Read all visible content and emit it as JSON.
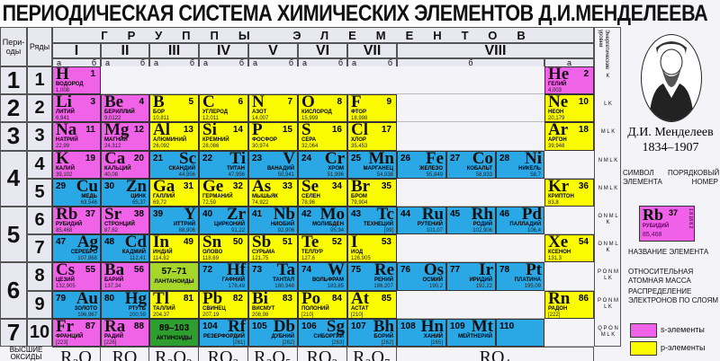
{
  "title": "ПЕРИОДИЧЕСКАЯ СИСТЕМА ХИМИЧЕСКИХ ЭЛЕМЕНТОВ Д.И.МЕНДЕЛЕЕВА",
  "header": {
    "periods_label": "Пери-оды",
    "rows_label": "Ряды",
    "groups_title": "ГРУППЫ ЭЛЕМЕНТОВ",
    "groups": [
      "I",
      "II",
      "III",
      "IV",
      "V",
      "VI",
      "VII",
      "VIII"
    ],
    "sub_a": "а",
    "sub_b": "б",
    "energy_levels": "Энергетические уровни"
  },
  "colors": {
    "s": "#f062e8",
    "p": "#fbfb00",
    "d": "#2aa8e6",
    "lan": "#a6d62a",
    "act": "#2e9e2e"
  },
  "periods": [
    {
      "label": "1",
      "rows": 1
    },
    {
      "label": "2",
      "rows": 1
    },
    {
      "label": "3",
      "rows": 1
    },
    {
      "label": "4",
      "rows": 2
    },
    {
      "label": "5",
      "rows": 2
    },
    {
      "label": "6",
      "rows": 2
    },
    {
      "label": "7",
      "rows": 1
    }
  ],
  "rows": [
    {
      "label": "1",
      "energy": "K",
      "cells": [
        {
          "s": "H",
          "n": "1",
          "nm": "ВОДОРОД",
          "m": "1,008",
          "t": "s"
        },
        null,
        null,
        null,
        null,
        null,
        null,
        null,
        null,
        null,
        {
          "s": "He",
          "n": "2",
          "nm": "ГЕЛИЙ",
          "m": "4,003",
          "t": "s"
        }
      ]
    },
    {
      "label": "2",
      "energy": "L K",
      "cells": [
        {
          "s": "Li",
          "n": "3",
          "nm": "ЛИТИЙ",
          "m": "6,941",
          "t": "s"
        },
        {
          "s": "Be",
          "n": "4",
          "nm": "БЕРИЛЛИЙ",
          "m": "9,0122",
          "t": "s"
        },
        {
          "s": "B",
          "n": "5",
          "nm": "БОР",
          "m": "10,811",
          "t": "p"
        },
        {
          "s": "C",
          "n": "6",
          "nm": "УГЛЕРОД",
          "m": "12,011",
          "t": "p"
        },
        {
          "s": "N",
          "n": "7",
          "nm": "АЗОТ",
          "m": "14,007",
          "t": "p"
        },
        {
          "s": "O",
          "n": "8",
          "nm": "КИСЛОРОД",
          "m": "15,999",
          "t": "p"
        },
        {
          "s": "F",
          "n": "9",
          "nm": "ФТОР",
          "m": "18,998",
          "t": "p"
        },
        null,
        null,
        null,
        {
          "s": "Ne",
          "n": "10",
          "nm": "НЕОН",
          "m": "20,179",
          "t": "p"
        }
      ]
    },
    {
      "label": "3",
      "energy": "M L K",
      "cells": [
        {
          "s": "Na",
          "n": "11",
          "nm": "НАТРИЙ",
          "m": "22,99",
          "t": "s"
        },
        {
          "s": "Mg",
          "n": "12",
          "nm": "МАГНИЙ",
          "m": "24,312",
          "t": "s"
        },
        {
          "s": "Al",
          "n": "13",
          "nm": "АЛЮМИНИЙ",
          "m": "26,092",
          "t": "p"
        },
        {
          "s": "Si",
          "n": "14",
          "nm": "КРЕМНИЙ",
          "m": "28,086",
          "t": "p"
        },
        {
          "s": "P",
          "n": "15",
          "nm": "ФОСФОР",
          "m": "30,974",
          "t": "p"
        },
        {
          "s": "S",
          "n": "16",
          "nm": "СЕРА",
          "m": "32,064",
          "t": "p"
        },
        {
          "s": "Cl",
          "n": "17",
          "nm": "ХЛОР",
          "m": "35,453",
          "t": "p"
        },
        null,
        null,
        null,
        {
          "s": "Ar",
          "n": "18",
          "nm": "АРГОН",
          "m": "39,948",
          "t": "p"
        }
      ]
    },
    {
      "label": "4",
      "energy": "N M L K",
      "cells": [
        {
          "s": "K",
          "n": "19",
          "nm": "КАЛИЙ",
          "m": "39,102",
          "t": "s"
        },
        {
          "s": "Ca",
          "n": "20",
          "nm": "КАЛЬЦИЙ",
          "m": "40,08",
          "t": "s"
        },
        {
          "s": "Sc",
          "n": "21",
          "nm": "СКАНДИЙ",
          "m": "44,956",
          "t": "d"
        },
        {
          "s": "Ti",
          "n": "22",
          "nm": "ТИТАН",
          "m": "47,956",
          "t": "d"
        },
        {
          "s": "V",
          "n": "23",
          "nm": "ВАНАДИЙ",
          "m": "50,941",
          "t": "d"
        },
        {
          "s": "Cr",
          "n": "24",
          "nm": "ХРОМ",
          "m": "51,996",
          "t": "d"
        },
        {
          "s": "Mn",
          "n": "25",
          "nm": "МАРГАНЕЦ",
          "m": "54,938",
          "t": "d"
        },
        {
          "s": "Fe",
          "n": "26",
          "nm": "ЖЕЛЕЗО",
          "m": "55,849",
          "t": "d"
        },
        {
          "s": "Co",
          "n": "27",
          "nm": "КОБАЛЬТ",
          "m": "58,933",
          "t": "d"
        },
        {
          "s": "Ni",
          "n": "28",
          "nm": "НИКЕЛЬ",
          "m": "58,7",
          "t": "d"
        },
        null
      ]
    },
    {
      "label": "5",
      "energy": "N M L K",
      "cells": [
        {
          "s": "Cu",
          "n": "29",
          "nm": "МЕДЬ",
          "m": "63,546",
          "t": "d"
        },
        {
          "s": "Zn",
          "n": "30",
          "nm": "ЦИНК",
          "m": "65,37",
          "t": "d"
        },
        {
          "s": "Ga",
          "n": "31",
          "nm": "ГАЛЛИЙ",
          "m": "69,72",
          "t": "p"
        },
        {
          "s": "Ge",
          "n": "32",
          "nm": "ГЕРМАНИЙ",
          "m": "72,59",
          "t": "p"
        },
        {
          "s": "As",
          "n": "33",
          "nm": "МЫШЬЯК",
          "m": "74,922",
          "t": "p"
        },
        {
          "s": "Se",
          "n": "34",
          "nm": "СЕЛЕН",
          "m": "78,96",
          "t": "p"
        },
        {
          "s": "Br",
          "n": "35",
          "nm": "БРОМ",
          "m": "79,904",
          "t": "p"
        },
        null,
        null,
        null,
        {
          "s": "Kr",
          "n": "36",
          "nm": "КРИПТОН",
          "m": "83,8",
          "t": "p"
        }
      ]
    },
    {
      "label": "6",
      "energy": "O N M L K",
      "cells": [
        {
          "s": "Rb",
          "n": "37",
          "nm": "РУБИДИЙ",
          "m": "85,468",
          "t": "s"
        },
        {
          "s": "Sr",
          "n": "38",
          "nm": "СТРОНЦИЙ",
          "m": "87,62",
          "t": "s"
        },
        {
          "s": "Y",
          "n": "39",
          "nm": "ИТТРИЙ",
          "m": "88,906",
          "t": "d"
        },
        {
          "s": "Zr",
          "n": "40",
          "nm": "ЦИРКОНИЙ",
          "m": "91,22",
          "t": "d"
        },
        {
          "s": "Nb",
          "n": "41",
          "nm": "НИОБИЙ",
          "m": "92,906",
          "t": "d"
        },
        {
          "s": "Mo",
          "n": "42",
          "nm": "МОЛИБДЕН",
          "m": "95,94",
          "t": "d"
        },
        {
          "s": "Tc",
          "n": "43",
          "nm": "ТЕХНЕЦИЙ",
          "m": "[99]",
          "t": "d"
        },
        {
          "s": "Ru",
          "n": "44",
          "nm": "РУТЕНИЙ",
          "m": "101,07",
          "t": "d"
        },
        {
          "s": "Rh",
          "n": "45",
          "nm": "РОДИЙ",
          "m": "102,906",
          "t": "d"
        },
        {
          "s": "Pd",
          "n": "46",
          "nm": "ПАЛЛАДИЙ",
          "m": "106,4",
          "t": "d"
        },
        null
      ]
    },
    {
      "label": "7",
      "energy": "O N M L K",
      "cells": [
        {
          "s": "Ag",
          "n": "47",
          "nm": "СЕРЕБРО",
          "m": "107,868",
          "t": "d"
        },
        {
          "s": "Cd",
          "n": "48",
          "nm": "КАДМИЙ",
          "m": "112,41",
          "t": "d"
        },
        {
          "s": "In",
          "n": "49",
          "nm": "ИНДИЙ",
          "m": "114,82",
          "t": "p"
        },
        {
          "s": "Sn",
          "n": "50",
          "nm": "ОЛОВО",
          "m": "118,69",
          "t": "p"
        },
        {
          "s": "Sb",
          "n": "51",
          "nm": "СУРЬМА",
          "m": "121,75",
          "t": "p"
        },
        {
          "s": "Te",
          "n": "52",
          "nm": "ТЕЛЛУР",
          "m": "127,6",
          "t": "p"
        },
        {
          "s": "I",
          "n": "53",
          "nm": "ИОД",
          "m": "126,905",
          "t": "p"
        },
        null,
        null,
        null,
        {
          "s": "Xe",
          "n": "54",
          "nm": "КСЕНОН",
          "m": "131,3",
          "t": "p"
        }
      ]
    },
    {
      "label": "8",
      "energy": "P O N M L K",
      "cells": [
        {
          "s": "Cs",
          "n": "55",
          "nm": "ЦЕЗИЙ",
          "m": "132,905",
          "t": "s"
        },
        {
          "s": "Ba",
          "n": "56",
          "nm": "БАРИЙ",
          "m": "137,34",
          "t": "s"
        },
        {
          "series": "57–71",
          "nm": "ЛАНТАНОИДЫ",
          "t": "lan"
        },
        {
          "s": "Hf",
          "n": "72",
          "nm": "ГАФНИЙ",
          "m": "178,49",
          "t": "d"
        },
        {
          "s": "Ta",
          "n": "73",
          "nm": "ТАНТАЛ",
          "m": "180,948",
          "t": "d"
        },
        {
          "s": "W",
          "n": "74",
          "nm": "ВОЛЬФРАМ",
          "m": "183,85",
          "t": "d"
        },
        {
          "s": "Re",
          "n": "75",
          "nm": "РЕНИЙ",
          "m": "186,207",
          "t": "d"
        },
        {
          "s": "Os",
          "n": "76",
          "nm": "ОСМИЙ",
          "m": "190,2",
          "t": "d"
        },
        {
          "s": "Ir",
          "n": "77",
          "nm": "ИРИДИЙ",
          "m": "192,22",
          "t": "d"
        },
        {
          "s": "Pt",
          "n": "78",
          "nm": "ПЛАТИНА",
          "m": "195,09",
          "t": "d"
        },
        null
      ]
    },
    {
      "label": "9",
      "energy": "P O N M L K",
      "cells": [
        {
          "s": "Au",
          "n": "79",
          "nm": "ЗОЛОТО",
          "m": "196,967",
          "t": "d"
        },
        {
          "s": "Hg",
          "n": "80",
          "nm": "РТУТЬ",
          "m": "200,59",
          "t": "d"
        },
        {
          "s": "Tl",
          "n": "81",
          "nm": "ТАЛЛИЙ",
          "m": "204,37",
          "t": "p"
        },
        {
          "s": "Pb",
          "n": "82",
          "nm": "СВИНЕЦ",
          "m": "207,19",
          "t": "p"
        },
        {
          "s": "Bi",
          "n": "83",
          "nm": "ВИСМУТ",
          "m": "208,98",
          "t": "p"
        },
        {
          "s": "Po",
          "n": "84",
          "nm": "ПОЛОНИЙ",
          "m": "[210]",
          "t": "p"
        },
        {
          "s": "At",
          "n": "85",
          "nm": "АСТАТ",
          "m": "[210]",
          "t": "p"
        },
        null,
        null,
        null,
        {
          "s": "Rn",
          "n": "86",
          "nm": "РАДОН",
          "m": "[222]",
          "t": "p"
        }
      ]
    },
    {
      "label": "10",
      "energy": "Q P O N M L K",
      "cells": [
        {
          "s": "Fr",
          "n": "87",
          "nm": "ФРАНЦИЙ",
          "m": "[223]",
          "t": "s"
        },
        {
          "s": "Ra",
          "n": "88",
          "nm": "РАДИЙ",
          "m": "[226]",
          "t": "s"
        },
        {
          "series": "89–103",
          "nm": "АКТИНОИДЫ",
          "t": "act"
        },
        {
          "s": "Rf",
          "n": "104",
          "nm": "РЕЗЕРФОРДИЙ",
          "m": "[261]",
          "t": "d"
        },
        {
          "s": "Db",
          "n": "105",
          "nm": "ДУБНИЙ",
          "m": "[262]",
          "t": "d"
        },
        {
          "s": "Sg",
          "n": "106",
          "nm": "СИБОРГИЙ",
          "m": "[263]",
          "t": "d"
        },
        {
          "s": "Bh",
          "n": "107",
          "nm": "БОРИЙ",
          "m": "[262]",
          "t": "d"
        },
        {
          "s": "Hn",
          "n": "108",
          "nm": "ХАНИЙ",
          "m": "[265]",
          "t": "d"
        },
        {
          "s": "Mt",
          "n": "109",
          "nm": "МЕЙТНЕРИЙ",
          "m": "",
          "t": "d"
        },
        {
          "s": "",
          "n": "110",
          "nm": "",
          "m": "",
          "t": "d"
        },
        null
      ]
    }
  ],
  "oxides": {
    "label": "ВЫСШИЕ ОКСИДЫ",
    "values": [
      "R₂O",
      "RO",
      "R₂O₃",
      "RO₂",
      "R₂O₅",
      "RO₃",
      "R₂O₇",
      "RO₄"
    ]
  },
  "panel": {
    "name": "Д.И. Менделеев",
    "years": "1834–1907",
    "key_symbol": "Rb",
    "key_number": "37",
    "key_name": "РУБИДИЙ",
    "key_mass": "85,468",
    "key_shells": "1 8 18 8 2",
    "symbol_label": "СИМВОЛ ЭЛЕМЕНТА",
    "number_label": "ПОРЯДКОВЫЙ НОМЕР",
    "name_label": "НАЗВАНИЕ ЭЛЕМЕНТА",
    "mass_label": "ОТНОСИТЕЛЬНАЯ АТОМНАЯ МАССА",
    "shells_label": "РАСПРЕДЕЛЕНИЕ ЭЛЕКТРОНОВ ПО СЛОЯМ",
    "legend_s": "s-элементы",
    "legend_p": "p-элементы"
  }
}
